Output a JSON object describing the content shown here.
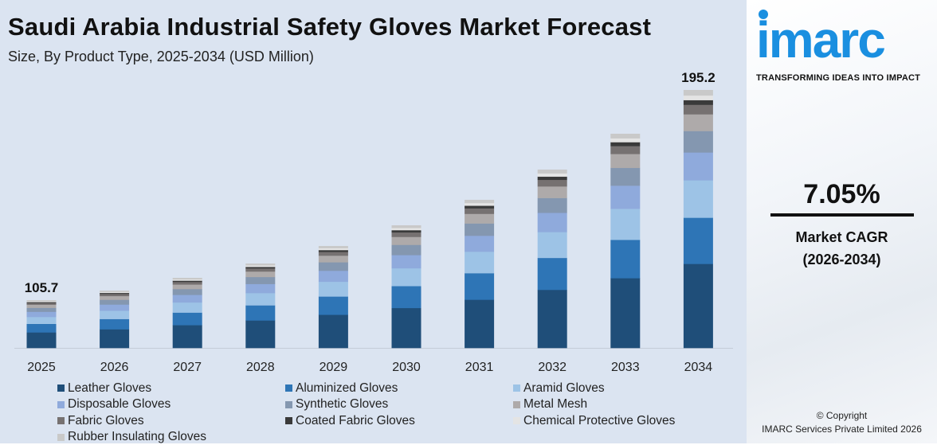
{
  "header": {
    "title": "Saudi Arabia Industrial Safety Gloves Market Forecast",
    "subtitle": "Size, By Product Type, 2025-2034 (USD Million)"
  },
  "chart_data": {
    "type": "bar",
    "stacked": true,
    "title": "Saudi Arabia Industrial Safety Gloves Market Forecast",
    "subtitle": "Size, By Product Type, 2025-2034 (USD Million)",
    "categories": [
      "2025",
      "2026",
      "2027",
      "2028",
      "2029",
      "2030",
      "2031",
      "2032",
      "2033",
      "2034"
    ],
    "totals": [
      105.7,
      113.2,
      121.1,
      129.7,
      138.8,
      148.6,
      159.1,
      170.3,
      182.3,
      195.2
    ],
    "total_labels": {
      "2025": "105.7",
      "2034": "195.2"
    },
    "series": [
      {
        "name": "Leather Gloves",
        "color": "#1f4e79",
        "share": 0.326
      },
      {
        "name": "Aluminized Gloves",
        "color": "#2e75b6",
        "share": 0.179
      },
      {
        "name": "Aramid Gloves",
        "color": "#9dc3e6",
        "share": 0.145
      },
      {
        "name": "Disposable Gloves",
        "color": "#8faadc",
        "share": 0.108
      },
      {
        "name": "Synthetic Gloves",
        "color": "#8497b0",
        "share": 0.083
      },
      {
        "name": "Metal Mesh",
        "color": "#aeaaaa",
        "share": 0.065
      },
      {
        "name": "Fabric Gloves",
        "color": "#767171",
        "share": 0.037
      },
      {
        "name": "Coated Fabric Gloves",
        "color": "#3a3a3a",
        "share": 0.018
      },
      {
        "name": "Chemical Protective Gloves",
        "color": "#e4e4e4",
        "share": 0.018
      },
      {
        "name": "Rubber Insulating Gloves",
        "color": "#c9c9c9",
        "share": 0.021
      }
    ],
    "grid": false,
    "legend": "bottom"
  },
  "side": {
    "logo": "imarc",
    "tagline": "TRANSFORMING IDEAS INTO IMPACT",
    "cagr": "7.05%",
    "cagr_label": "Market CAGR",
    "cagr_period": "(2026-2034)",
    "copyright": "© Copyright",
    "company": "IMARC Services Private Limited 2026"
  }
}
